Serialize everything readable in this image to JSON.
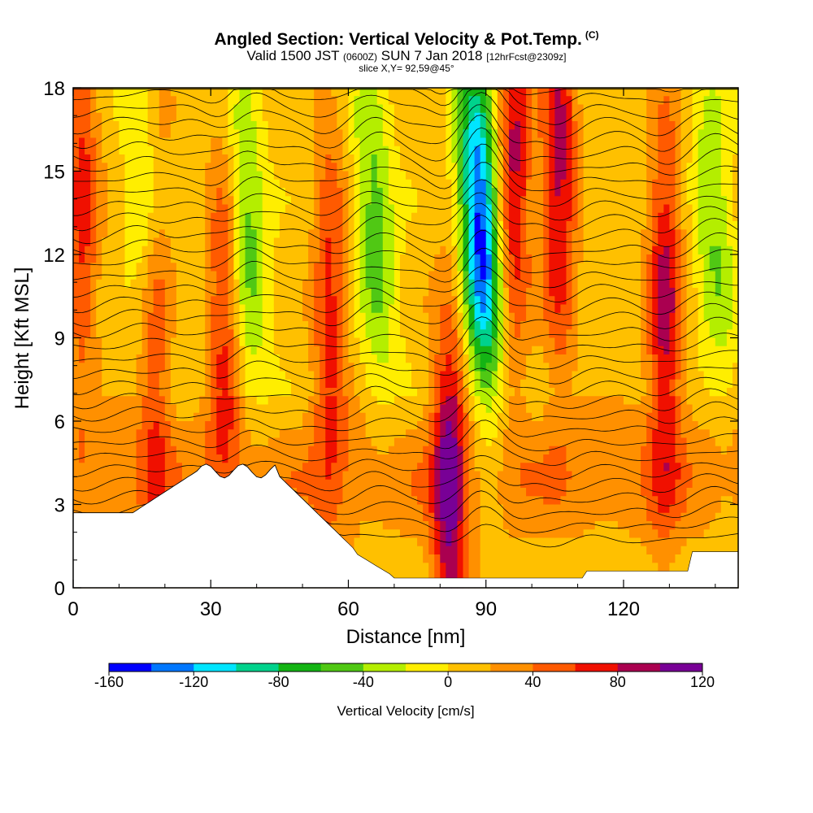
{
  "header": {
    "title_main": "Angled Section: Vertical Velocity & Pot.Temp.",
    "title_unit": "(C)",
    "valid_prefix": "Valid 1500 JST",
    "valid_z": "(0600Z)",
    "valid_date": "SUN 7 Jan 2018",
    "fcst": "[12hrFcst@2309z]",
    "slice": "slice X,Y= 92,59@45°"
  },
  "colors": {
    "palette": [
      "#0000ff",
      "#0077ff",
      "#00e5ff",
      "#00d28c",
      "#14b414",
      "#50c814",
      "#b4ee00",
      "#ffee00",
      "#ffc000",
      "#ff9000",
      "#ff5a00",
      "#f01000",
      "#aa0050",
      "#780096"
    ],
    "terrain": "#ffffff",
    "contour": "#000000"
  },
  "chart_data": {
    "type": "heatmap",
    "title": "Angled Section: Vertical Velocity & Pot.Temp.",
    "xlabel": "Distance [nm]",
    "ylabel": "Height [Kft MSL]",
    "xlim": [
      0,
      145
    ],
    "ylim": [
      0,
      18
    ],
    "x_ticks": [
      "0",
      "30",
      "60",
      "90",
      "120"
    ],
    "y_ticks": [
      "0",
      "3",
      "6",
      "9",
      "12",
      "15",
      "18"
    ],
    "colorbar": {
      "label": "Vertical Velocity [cm/s]",
      "ticks": [
        "-160",
        "-120",
        "-80",
        "-40",
        "0",
        "40",
        "80",
        "120"
      ],
      "min": -160,
      "max": 120,
      "step": 20
    },
    "series": [
      {
        "name": "Vertical Velocity",
        "units": "cm/s"
      },
      {
        "name": "Pot.Temp.",
        "units": "C"
      }
    ],
    "updraft_columns": [
      {
        "x": 2,
        "value": 60
      },
      {
        "x": 18,
        "value": 80
      },
      {
        "x": 33,
        "value": 60
      },
      {
        "x": 56,
        "value": 60
      },
      {
        "x": 82,
        "value": 90
      },
      {
        "x": 96,
        "value": 80
      },
      {
        "x": 106,
        "value": 80
      },
      {
        "x": 129,
        "value": 80
      }
    ],
    "downdraft_columns": [
      {
        "x": 17,
        "value": -60
      },
      {
        "x": 38,
        "value": -60
      },
      {
        "x": 66,
        "value": -60
      },
      {
        "x": 89,
        "value": -160
      },
      {
        "x": 140,
        "value": -50
      }
    ]
  }
}
